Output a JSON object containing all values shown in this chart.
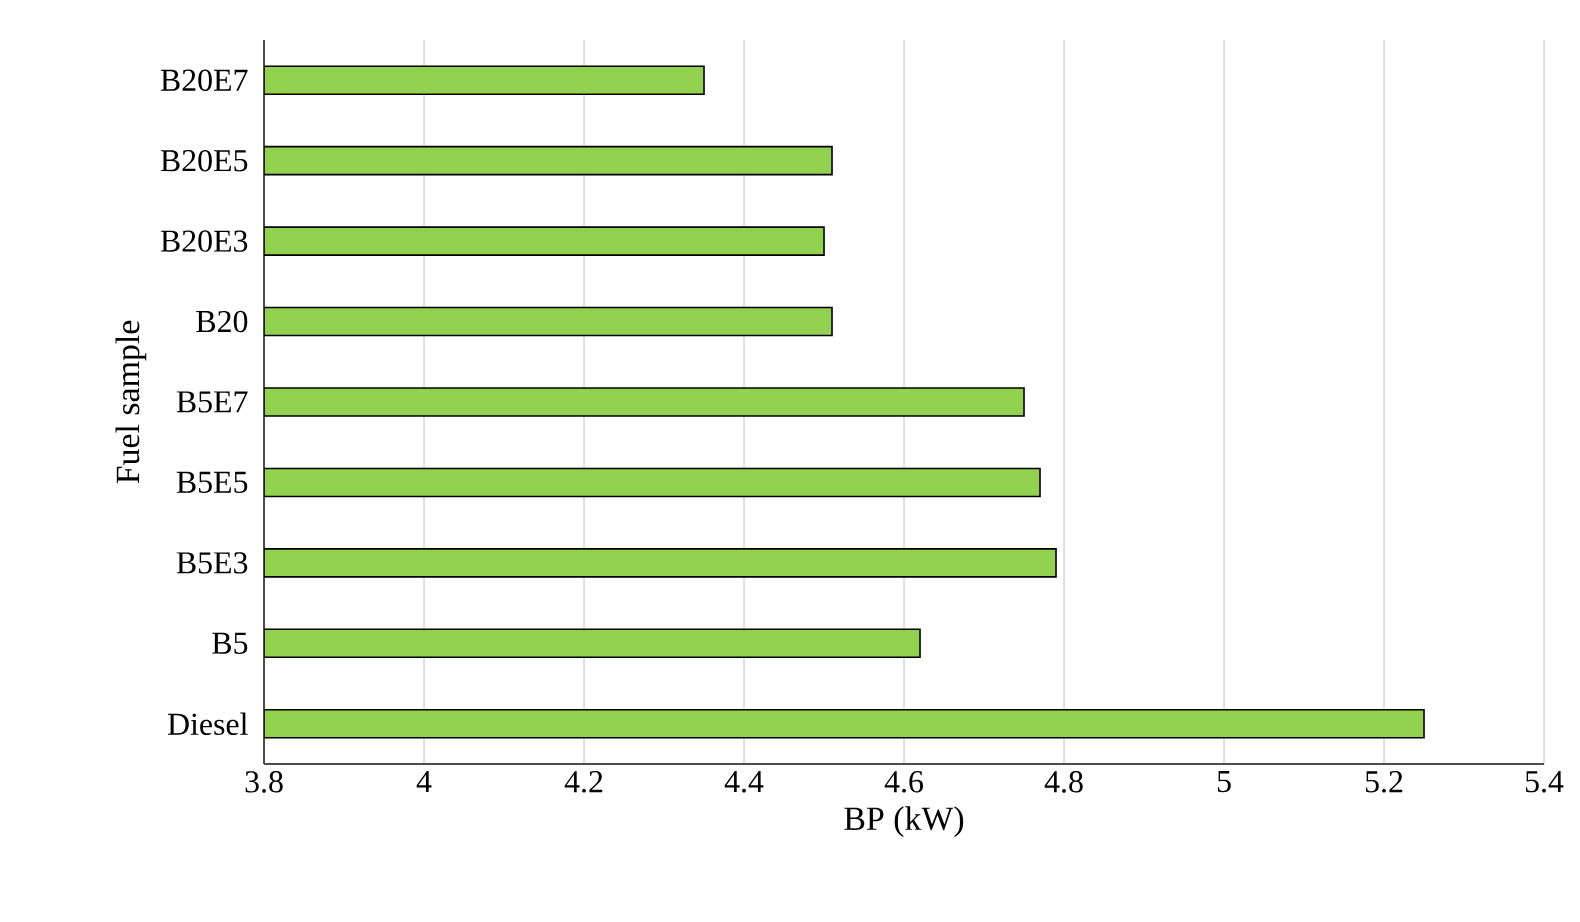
{
  "chart_data": {
    "type": "bar",
    "orientation": "horizontal",
    "categories": [
      "B20E7",
      "B20E5",
      "B20E3",
      "B20",
      "B5E7",
      "B5E5",
      "B5E3",
      "B5",
      "Diesel"
    ],
    "values": [
      4.35,
      4.51,
      4.5,
      4.51,
      4.75,
      4.77,
      4.79,
      4.62,
      5.25
    ],
    "color": "#92d050",
    "xlabel": "BP (kW)",
    "ylabel": "Fuel sample",
    "xlim": [
      3.8,
      5.4
    ],
    "xticks": [
      3.8,
      4,
      4.2,
      4.4,
      4.6,
      4.8,
      5,
      5.2,
      5.4
    ],
    "grid": "x"
  }
}
